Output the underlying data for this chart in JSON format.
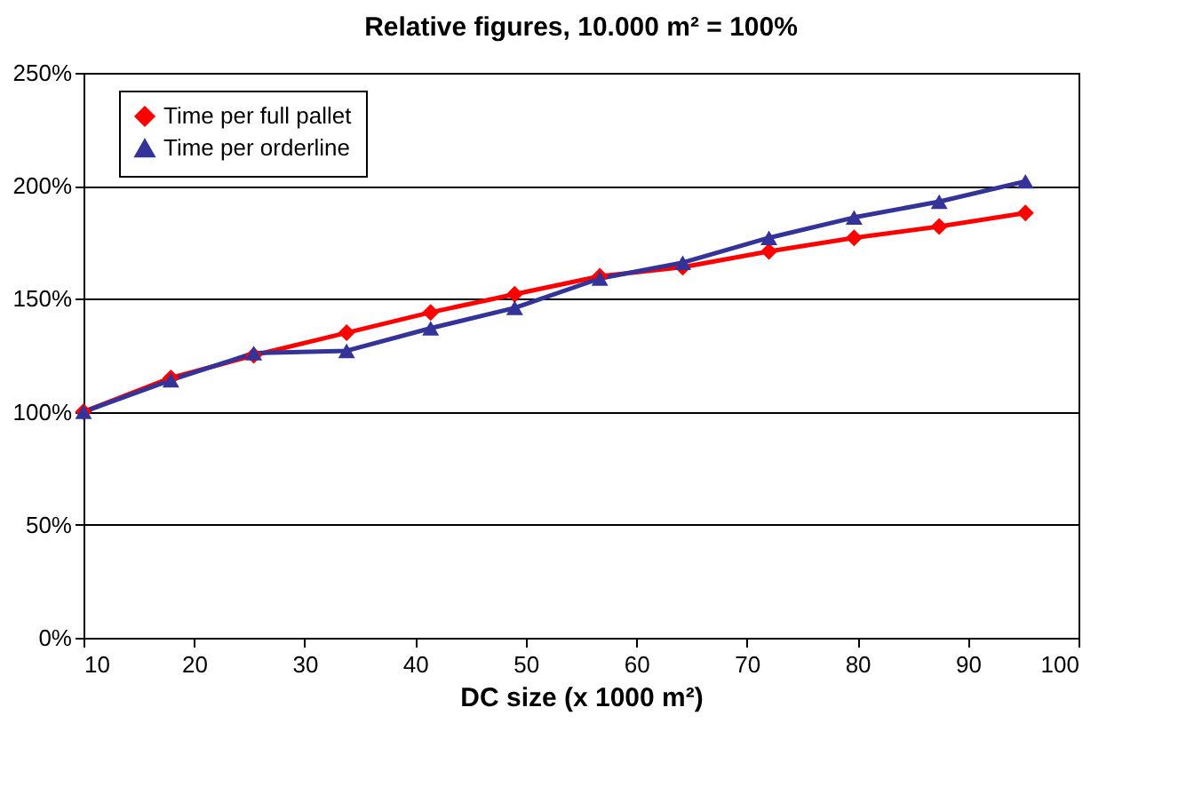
{
  "chart_data": {
    "type": "line",
    "title": "Relative figures, 10.000 m² = 100%",
    "xlabel": "DC size (x 1000 m²)",
    "x": [
      10,
      17.9,
      25.4,
      33.8,
      41.4,
      49,
      56.7,
      64.2,
      72,
      79.7,
      87.4,
      95.2
    ],
    "series": [
      {
        "name": "Time per full pallet",
        "color": "#ff0000",
        "marker": "diamond",
        "values": [
          100,
          115,
          125,
          135,
          144,
          152,
          160,
          164,
          171,
          177,
          182,
          188
        ]
      },
      {
        "name": "Time per orderline",
        "color": "#333399",
        "marker": "triangle",
        "values": [
          100,
          114,
          126,
          127,
          137,
          146,
          159,
          166,
          177,
          186,
          193,
          202
        ]
      }
    ],
    "xlim": [
      10,
      100
    ],
    "xticks": [
      10,
      20,
      30,
      40,
      50,
      60,
      70,
      80,
      90,
      100
    ],
    "ylim": [
      0,
      250
    ],
    "yticks": [
      {
        "value": 0,
        "label": "0%"
      },
      {
        "value": 50,
        "label": "50%"
      },
      {
        "value": 100,
        "label": "100%"
      },
      {
        "value": 150,
        "label": "150%"
      },
      {
        "value": 200,
        "label": "200%"
      },
      {
        "value": 250,
        "label": "250%"
      }
    ],
    "grid": "y",
    "legend": "top left"
  }
}
